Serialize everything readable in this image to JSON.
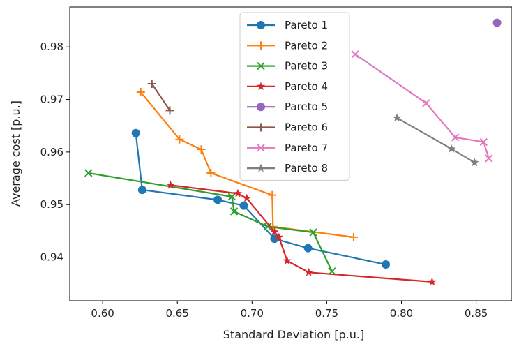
{
  "chart_data": {
    "type": "line",
    "title": "",
    "xlabel": "Standard Deviation [p.u.]",
    "ylabel": "Average cost [p.u.]",
    "xlim": [
      0.578,
      0.874
    ],
    "ylim": [
      0.9317,
      0.9876
    ],
    "xticks": [
      0.6,
      0.65,
      0.7,
      0.75,
      0.8,
      0.85
    ],
    "xtick_labels": [
      "0.60",
      "0.65",
      "0.70",
      "0.75",
      "0.80",
      "0.85"
    ],
    "yticks": [
      0.94,
      0.95,
      0.96,
      0.97,
      0.98
    ],
    "ytick_labels": [
      "0.94",
      "0.95",
      "0.96",
      "0.97",
      "0.98"
    ],
    "grid": false,
    "legend_position": "top-center",
    "series": [
      {
        "name": "Pareto 1",
        "color": "#1f77b4",
        "marker": "circle",
        "x": [
          0.6222,
          0.6265,
          0.677,
          0.6945,
          0.715,
          0.7375,
          0.7895
        ],
        "y": [
          0.9636,
          0.9528,
          0.9509,
          0.9498,
          0.9435,
          0.9417,
          0.9386
        ]
      },
      {
        "name": "Pareto 2",
        "color": "#ff7f0e",
        "marker": "plus",
        "x": [
          0.6255,
          0.6515,
          0.666,
          0.6725,
          0.7135,
          0.714,
          0.768
        ],
        "y": [
          0.9714,
          0.9624,
          0.9605,
          0.956,
          0.9518,
          0.9458,
          0.9438
        ]
      },
      {
        "name": "Pareto 3",
        "color": "#2ca02c",
        "marker": "x",
        "x": [
          0.5905,
          0.6865,
          0.688,
          0.7105,
          0.741,
          0.7535
        ],
        "y": [
          0.956,
          0.9515,
          0.9487,
          0.9458,
          0.9447,
          0.9373
        ]
      },
      {
        "name": "Pareto 4",
        "color": "#d62728",
        "marker": "star",
        "x": [
          0.6455,
          0.6905,
          0.6965,
          0.715,
          0.718,
          0.7235,
          0.738,
          0.8205
        ],
        "y": [
          0.9537,
          0.9521,
          0.9512,
          0.9448,
          0.9438,
          0.9393,
          0.9371,
          0.9353
        ]
      },
      {
        "name": "Pareto 5",
        "color": "#9467bd",
        "marker": "circle",
        "x": [
          0.864
        ],
        "y": [
          0.9846
        ]
      },
      {
        "name": "Pareto 6",
        "color": "#8c564b",
        "marker": "plus",
        "x": [
          0.633,
          0.645
        ],
        "y": [
          0.973,
          0.9679
        ]
      },
      {
        "name": "Pareto 7",
        "color": "#e377c2",
        "marker": "x",
        "x": [
          0.769,
          0.8165,
          0.836,
          0.855,
          0.8585
        ],
        "y": [
          0.9786,
          0.9693,
          0.9628,
          0.9619,
          0.9588
        ]
      },
      {
        "name": "Pareto 8",
        "color": "#7f7f7f",
        "marker": "star",
        "x": [
          0.797,
          0.8335,
          0.849
        ],
        "y": [
          0.9665,
          0.9606,
          0.958
        ]
      }
    ]
  }
}
